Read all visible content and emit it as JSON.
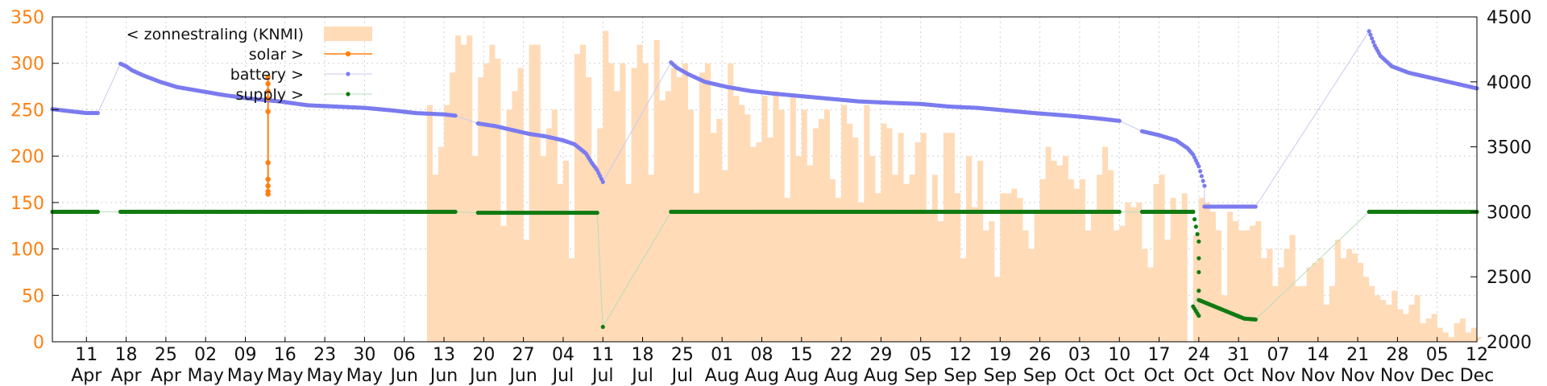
{
  "chart_data": {
    "type": "area",
    "title": "",
    "xlabel": "",
    "ylabel": "",
    "grid": true,
    "legend_placement": "top-left",
    "x_ticks": [
      {
        "date": "2020-04-11",
        "day": "11",
        "month": "Apr"
      },
      {
        "date": "2020-04-18",
        "day": "18",
        "month": "Apr"
      },
      {
        "date": "2020-04-25",
        "day": "25",
        "month": "Apr"
      },
      {
        "date": "2020-05-02",
        "day": "02",
        "month": "May"
      },
      {
        "date": "2020-05-09",
        "day": "09",
        "month": "May"
      },
      {
        "date": "2020-05-16",
        "day": "16",
        "month": "May"
      },
      {
        "date": "2020-05-23",
        "day": "23",
        "month": "May"
      },
      {
        "date": "2020-05-30",
        "day": "30",
        "month": "May"
      },
      {
        "date": "2020-06-06",
        "day": "06",
        "month": "Jun"
      },
      {
        "date": "2020-06-13",
        "day": "13",
        "month": "Jun"
      },
      {
        "date": "2020-06-20",
        "day": "20",
        "month": "Jun"
      },
      {
        "date": "2020-06-27",
        "day": "27",
        "month": "Jun"
      },
      {
        "date": "2020-07-04",
        "day": "04",
        "month": "Jul"
      },
      {
        "date": "2020-07-11",
        "day": "11",
        "month": "Jul"
      },
      {
        "date": "2020-07-18",
        "day": "18",
        "month": "Jul"
      },
      {
        "date": "2020-07-25",
        "day": "25",
        "month": "Jul"
      },
      {
        "date": "2020-08-01",
        "day": "01",
        "month": "Aug"
      },
      {
        "date": "2020-08-08",
        "day": "08",
        "month": "Aug"
      },
      {
        "date": "2020-08-15",
        "day": "15",
        "month": "Aug"
      },
      {
        "date": "2020-08-22",
        "day": "22",
        "month": "Aug"
      },
      {
        "date": "2020-08-29",
        "day": "29",
        "month": "Aug"
      },
      {
        "date": "2020-09-05",
        "day": "05",
        "month": "Sep"
      },
      {
        "date": "2020-09-12",
        "day": "12",
        "month": "Sep"
      },
      {
        "date": "2020-09-19",
        "day": "19",
        "month": "Sep"
      },
      {
        "date": "2020-09-26",
        "day": "26",
        "month": "Sep"
      },
      {
        "date": "2020-10-03",
        "day": "03",
        "month": "Oct"
      },
      {
        "date": "2020-10-10",
        "day": "10",
        "month": "Oct"
      },
      {
        "date": "2020-10-17",
        "day": "17",
        "month": "Oct"
      },
      {
        "date": "2020-10-24",
        "day": "24",
        "month": "Oct"
      },
      {
        "date": "2020-10-31",
        "day": "31",
        "month": "Oct"
      },
      {
        "date": "2020-11-07",
        "day": "07",
        "month": "Nov"
      },
      {
        "date": "2020-11-14",
        "day": "14",
        "month": "Nov"
      },
      {
        "date": "2020-11-21",
        "day": "21",
        "month": "Nov"
      },
      {
        "date": "2020-11-28",
        "day": "28",
        "month": "Nov"
      },
      {
        "date": "2020-12-05",
        "day": "05",
        "month": "Dec"
      },
      {
        "date": "2020-12-12",
        "day": "12",
        "month": "Dec"
      }
    ],
    "x_range": [
      "2020-04-05",
      "2020-12-12"
    ],
    "y_left": {
      "range": [
        0,
        350
      ],
      "ticks": [
        0,
        50,
        100,
        150,
        200,
        250,
        300,
        350
      ],
      "color": "#ff7f0e"
    },
    "y_right": {
      "range": [
        2000,
        4500
      ],
      "ticks": [
        2000,
        2500,
        3000,
        3500,
        4000,
        4500
      ],
      "color": "#111111"
    },
    "series": [
      {
        "name": "< zonnestraling (KNMI)",
        "axis": "left",
        "kind": "area",
        "color": "#ffdbb8",
        "x": [
          "2020-06-09",
          "2020-06-10",
          "2020-06-11",
          "2020-06-12",
          "2020-06-13",
          "2020-06-14",
          "2020-06-15",
          "2020-06-16",
          "2020-06-17",
          "2020-06-18",
          "2020-06-19",
          "2020-06-20",
          "2020-06-21",
          "2020-06-22",
          "2020-06-23",
          "2020-06-24",
          "2020-06-25",
          "2020-06-26",
          "2020-06-27",
          "2020-06-28",
          "2020-06-29",
          "2020-06-30",
          "2020-07-01",
          "2020-07-02",
          "2020-07-03",
          "2020-07-04",
          "2020-07-05",
          "2020-07-06",
          "2020-07-07",
          "2020-07-08",
          "2020-07-09",
          "2020-07-10",
          "2020-07-11",
          "2020-07-12",
          "2020-07-13",
          "2020-07-14",
          "2020-07-15",
          "2020-07-16",
          "2020-07-17",
          "2020-07-18",
          "2020-07-19",
          "2020-07-20",
          "2020-07-21",
          "2020-07-22",
          "2020-07-23",
          "2020-07-24",
          "2020-07-25",
          "2020-07-26",
          "2020-07-27",
          "2020-07-28",
          "2020-07-29",
          "2020-07-30",
          "2020-07-31",
          "2020-08-01",
          "2020-08-02",
          "2020-08-03",
          "2020-08-04",
          "2020-08-05",
          "2020-08-06",
          "2020-08-07",
          "2020-08-08",
          "2020-08-09",
          "2020-08-10",
          "2020-08-11",
          "2020-08-12",
          "2020-08-13",
          "2020-08-14",
          "2020-08-15",
          "2020-08-16",
          "2020-08-17",
          "2020-08-18",
          "2020-08-19",
          "2020-08-20",
          "2020-08-21",
          "2020-08-22",
          "2020-08-23",
          "2020-08-24",
          "2020-08-25",
          "2020-08-26",
          "2020-08-27",
          "2020-08-28",
          "2020-08-29",
          "2020-08-30",
          "2020-08-31",
          "2020-09-01",
          "2020-09-02",
          "2020-09-03",
          "2020-09-04",
          "2020-09-05",
          "2020-09-06",
          "2020-09-07",
          "2020-09-08",
          "2020-09-09",
          "2020-09-10",
          "2020-09-11",
          "2020-09-12",
          "2020-09-13",
          "2020-09-14",
          "2020-09-15",
          "2020-09-16",
          "2020-09-17",
          "2020-09-18",
          "2020-09-19",
          "2020-09-20",
          "2020-09-21",
          "2020-09-22",
          "2020-09-23",
          "2020-09-24",
          "2020-09-25",
          "2020-09-26",
          "2020-09-27",
          "2020-09-28",
          "2020-09-29",
          "2020-09-30",
          "2020-10-01",
          "2020-10-02",
          "2020-10-03",
          "2020-10-04",
          "2020-10-05",
          "2020-10-06",
          "2020-10-07",
          "2020-10-08",
          "2020-10-09",
          "2020-10-10",
          "2020-10-11",
          "2020-10-12",
          "2020-10-13",
          "2020-10-14",
          "2020-10-15",
          "2020-10-16",
          "2020-10-17",
          "2020-10-18",
          "2020-10-19",
          "2020-10-20",
          "2020-10-21",
          "2020-10-22",
          "2020-10-23",
          "2020-10-24",
          "2020-10-25",
          "2020-10-26",
          "2020-10-27",
          "2020-10-28",
          "2020-10-29",
          "2020-10-30",
          "2020-10-31",
          "2020-11-01",
          "2020-11-02",
          "2020-11-03",
          "2020-11-04",
          "2020-11-05",
          "2020-11-06",
          "2020-11-07",
          "2020-11-08",
          "2020-11-09",
          "2020-11-10",
          "2020-11-11",
          "2020-11-12",
          "2020-11-13",
          "2020-11-14",
          "2020-11-15",
          "2020-11-16",
          "2020-11-17",
          "2020-11-18",
          "2020-11-19",
          "2020-11-20",
          "2020-11-21",
          "2020-11-22",
          "2020-11-23",
          "2020-11-24",
          "2020-11-25",
          "2020-11-26",
          "2020-11-27",
          "2020-11-28",
          "2020-11-29",
          "2020-11-30",
          "2020-12-01",
          "2020-12-02",
          "2020-12-03",
          "2020-12-04",
          "2020-12-05",
          "2020-12-06",
          "2020-12-07",
          "2020-12-08",
          "2020-12-09",
          "2020-12-10",
          "2020-12-11",
          "2020-12-12"
        ],
        "values": [
          0,
          255,
          180,
          210,
          255,
          290,
          330,
          320,
          330,
          200,
          285,
          300,
          320,
          305,
          125,
          250,
          270,
          295,
          110,
          320,
          320,
          200,
          230,
          250,
          170,
          195,
          90,
          310,
          320,
          285,
          190,
          230,
          335,
          300,
          270,
          300,
          170,
          295,
          320,
          300,
          180,
          325,
          260,
          270,
          295,
          285,
          300,
          250,
          160,
          290,
          300,
          225,
          240,
          185,
          300,
          265,
          255,
          245,
          210,
          215,
          265,
          220,
          270,
          250,
          155,
          265,
          200,
          250,
          190,
          230,
          240,
          250,
          175,
          155,
          255,
          235,
          220,
          150,
          255,
          200,
          160,
          235,
          230,
          180,
          225,
          170,
          180,
          215,
          225,
          140,
          180,
          130,
          225,
          225,
          160,
          90,
          200,
          145,
          195,
          120,
          130,
          70,
          160,
          160,
          165,
          155,
          120,
          100,
          140,
          175,
          210,
          195,
          190,
          200,
          175,
          165,
          175,
          120,
          140,
          180,
          210,
          185,
          120,
          125,
          150,
          145,
          150,
          100,
          80,
          170,
          180,
          110,
          155,
          140,
          160,
          0,
          115,
          155,
          150,
          140,
          120,
          50,
          140,
          130,
          120,
          120,
          125,
          130,
          90,
          100,
          60,
          80,
          100,
          115,
          60,
          60,
          80,
          85,
          90,
          40,
          60,
          110,
          90,
          100,
          95,
          85,
          70,
          60,
          50,
          45,
          40,
          55,
          35,
          30,
          40,
          50,
          20,
          25,
          30,
          15,
          10,
          5,
          20,
          25,
          10,
          15,
          5
        ],
        "value_interval": "daily; stepped fill"
      },
      {
        "name": "solar >",
        "axis": "left",
        "kind": "line-points",
        "color": "#ff7f0e",
        "x": [
          "2020-05-13",
          "2020-05-13",
          "2020-05-13",
          "2020-05-13",
          "2020-05-13",
          "2020-05-13",
          "2020-05-13",
          "2020-05-13",
          "2020-05-13",
          "2020-05-13"
        ],
        "values": [
          285,
          278,
          270,
          262,
          248,
          193,
          175,
          168,
          162,
          159
        ]
      },
      {
        "name": "battery >",
        "axis": "right",
        "kind": "points",
        "color": "#7b7bef",
        "segments": [
          {
            "x": [
              "2020-04-05",
              "2020-04-07",
              "2020-04-09",
              "2020-04-11",
              "2020-04-13"
            ],
            "values": [
              3790,
              3780,
              3770,
              3760,
              3760
            ]
          },
          {
            "x": [
              "2020-04-17",
              "2020-04-18",
              "2020-04-19",
              "2020-04-21",
              "2020-04-24",
              "2020-04-27",
              "2020-05-01",
              "2020-05-05",
              "2020-05-10",
              "2020-05-15",
              "2020-05-20",
              "2020-05-25",
              "2020-05-30",
              "2020-06-04",
              "2020-06-08",
              "2020-06-13",
              "2020-06-15"
            ],
            "values": [
              4140,
              4120,
              4090,
              4050,
              4000,
              3960,
              3930,
              3900,
              3870,
              3850,
              3820,
              3810,
              3800,
              3780,
              3760,
              3750,
              3740
            ]
          },
          {
            "x": [
              "2020-06-19",
              "2020-06-22",
              "2020-06-25",
              "2020-06-28",
              "2020-07-01",
              "2020-07-04",
              "2020-07-06",
              "2020-07-08",
              "2020-07-09",
              "2020-07-10",
              "2020-07-11"
            ],
            "values": [
              3680,
              3660,
              3630,
              3600,
              3580,
              3550,
              3520,
              3450,
              3380,
              3320,
              3230
            ]
          },
          {
            "x": [
              "2020-07-23",
              "2020-07-24",
              "2020-07-26",
              "2020-07-29",
              "2020-08-02",
              "2020-08-06",
              "2020-08-10",
              "2020-08-15",
              "2020-08-20",
              "2020-08-25",
              "2020-08-30",
              "2020-09-05",
              "2020-09-10",
              "2020-09-15",
              "2020-09-20",
              "2020-09-25",
              "2020-10-01",
              "2020-10-06",
              "2020-10-10"
            ],
            "values": [
              4150,
              4110,
              4060,
              4000,
              3960,
              3930,
              3910,
              3890,
              3870,
              3850,
              3840,
              3830,
              3810,
              3800,
              3780,
              3760,
              3740,
              3720,
              3700
            ]
          },
          {
            "x": [
              "2020-10-14",
              "2020-10-17",
              "2020-10-20",
              "2020-10-22",
              "2020-10-23",
              "2020-10-24",
              "2020-10-25"
            ],
            "values": [
              3620,
              3590,
              3550,
              3490,
              3440,
              3350,
              3200
            ]
          },
          {
            "x": [
              "2020-10-25",
              "2020-10-28",
              "2020-11-01",
              "2020-11-03"
            ],
            "values": [
              3040,
              3040,
              3040,
              3040
            ]
          },
          {
            "x": [
              "2020-11-23",
              "2020-11-24",
              "2020-11-25",
              "2020-11-27",
              "2020-11-30",
              "2020-12-03",
              "2020-12-06",
              "2020-12-09",
              "2020-12-12"
            ],
            "values": [
              4390,
              4280,
              4200,
              4120,
              4070,
              4040,
              4010,
              3980,
              3950
            ]
          }
        ]
      },
      {
        "name": "supply >",
        "axis": "left",
        "kind": "points",
        "color": "#117a11",
        "segments": [
          {
            "x": [
              "2020-04-05",
              "2020-04-13"
            ],
            "values": [
              140,
              140
            ]
          },
          {
            "x": [
              "2020-04-17",
              "2020-06-15"
            ],
            "values": [
              140,
              140
            ]
          },
          {
            "x": [
              "2020-06-19",
              "2020-07-10"
            ],
            "values": [
              139,
              139
            ]
          },
          {
            "x": [
              "2020-07-11"
            ],
            "values": [
              16
            ]
          },
          {
            "x": [
              "2020-07-23",
              "2020-10-10"
            ],
            "values": [
              140,
              140
            ]
          },
          {
            "x": [
              "2020-10-14",
              "2020-10-23"
            ],
            "values": [
              140,
              140
            ]
          },
          {
            "x": [
              "2020-10-23",
              "2020-10-24",
              "2020-10-24",
              "2020-10-24",
              "2020-10-24"
            ],
            "values": [
              140,
              108,
              90,
              75,
              55
            ]
          },
          {
            "x": [
              "2020-10-23",
              "2020-10-24"
            ],
            "values": [
              38,
              28
            ]
          },
          {
            "x": [
              "2020-10-24",
              "2020-10-26",
              "2020-10-28",
              "2020-10-30",
              "2020-11-01",
              "2020-11-03"
            ],
            "values": [
              45,
              40,
              35,
              30,
              25,
              24
            ]
          },
          {
            "x": [
              "2020-11-23",
              "2020-12-12"
            ],
            "values": [
              140,
              140
            ]
          }
        ]
      }
    ]
  }
}
